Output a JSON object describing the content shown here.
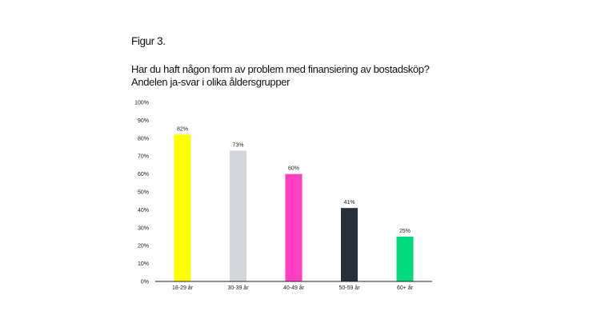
{
  "figure_label": "Figur 3.",
  "title_line1": "Har du haft någon form av problem med finansiering av bostadsköp?",
  "title_line2": "Andelen ja-svar i olika åldersgrupper",
  "chart_data": {
    "type": "bar",
    "title": "Har du haft någon form av problem med finansiering av bostadsköp? Andelen ja-svar i olika åldersgrupper",
    "xlabel": "",
    "ylabel": "",
    "ylim": [
      0,
      100
    ],
    "y_ticks": [
      "0%",
      "10%",
      "20%",
      "30%",
      "40%",
      "50%",
      "60%",
      "70%",
      "80%",
      "90%",
      "100%"
    ],
    "y_tick_values": [
      0,
      10,
      20,
      30,
      40,
      50,
      60,
      70,
      80,
      90,
      100
    ],
    "categories": [
      "18-29 år",
      "30-39 år",
      "40-49 år",
      "50-59 år",
      "60+ år"
    ],
    "values": [
      82,
      73,
      60,
      41,
      25
    ],
    "data_labels": [
      "82%",
      "73%",
      "60%",
      "41%",
      "25%"
    ],
    "colors": [
      "#FFFF00",
      "#D4D6DB",
      "#FF3FBF",
      "#26303A",
      "#00D97E"
    ],
    "grid": false,
    "legend": "none"
  }
}
